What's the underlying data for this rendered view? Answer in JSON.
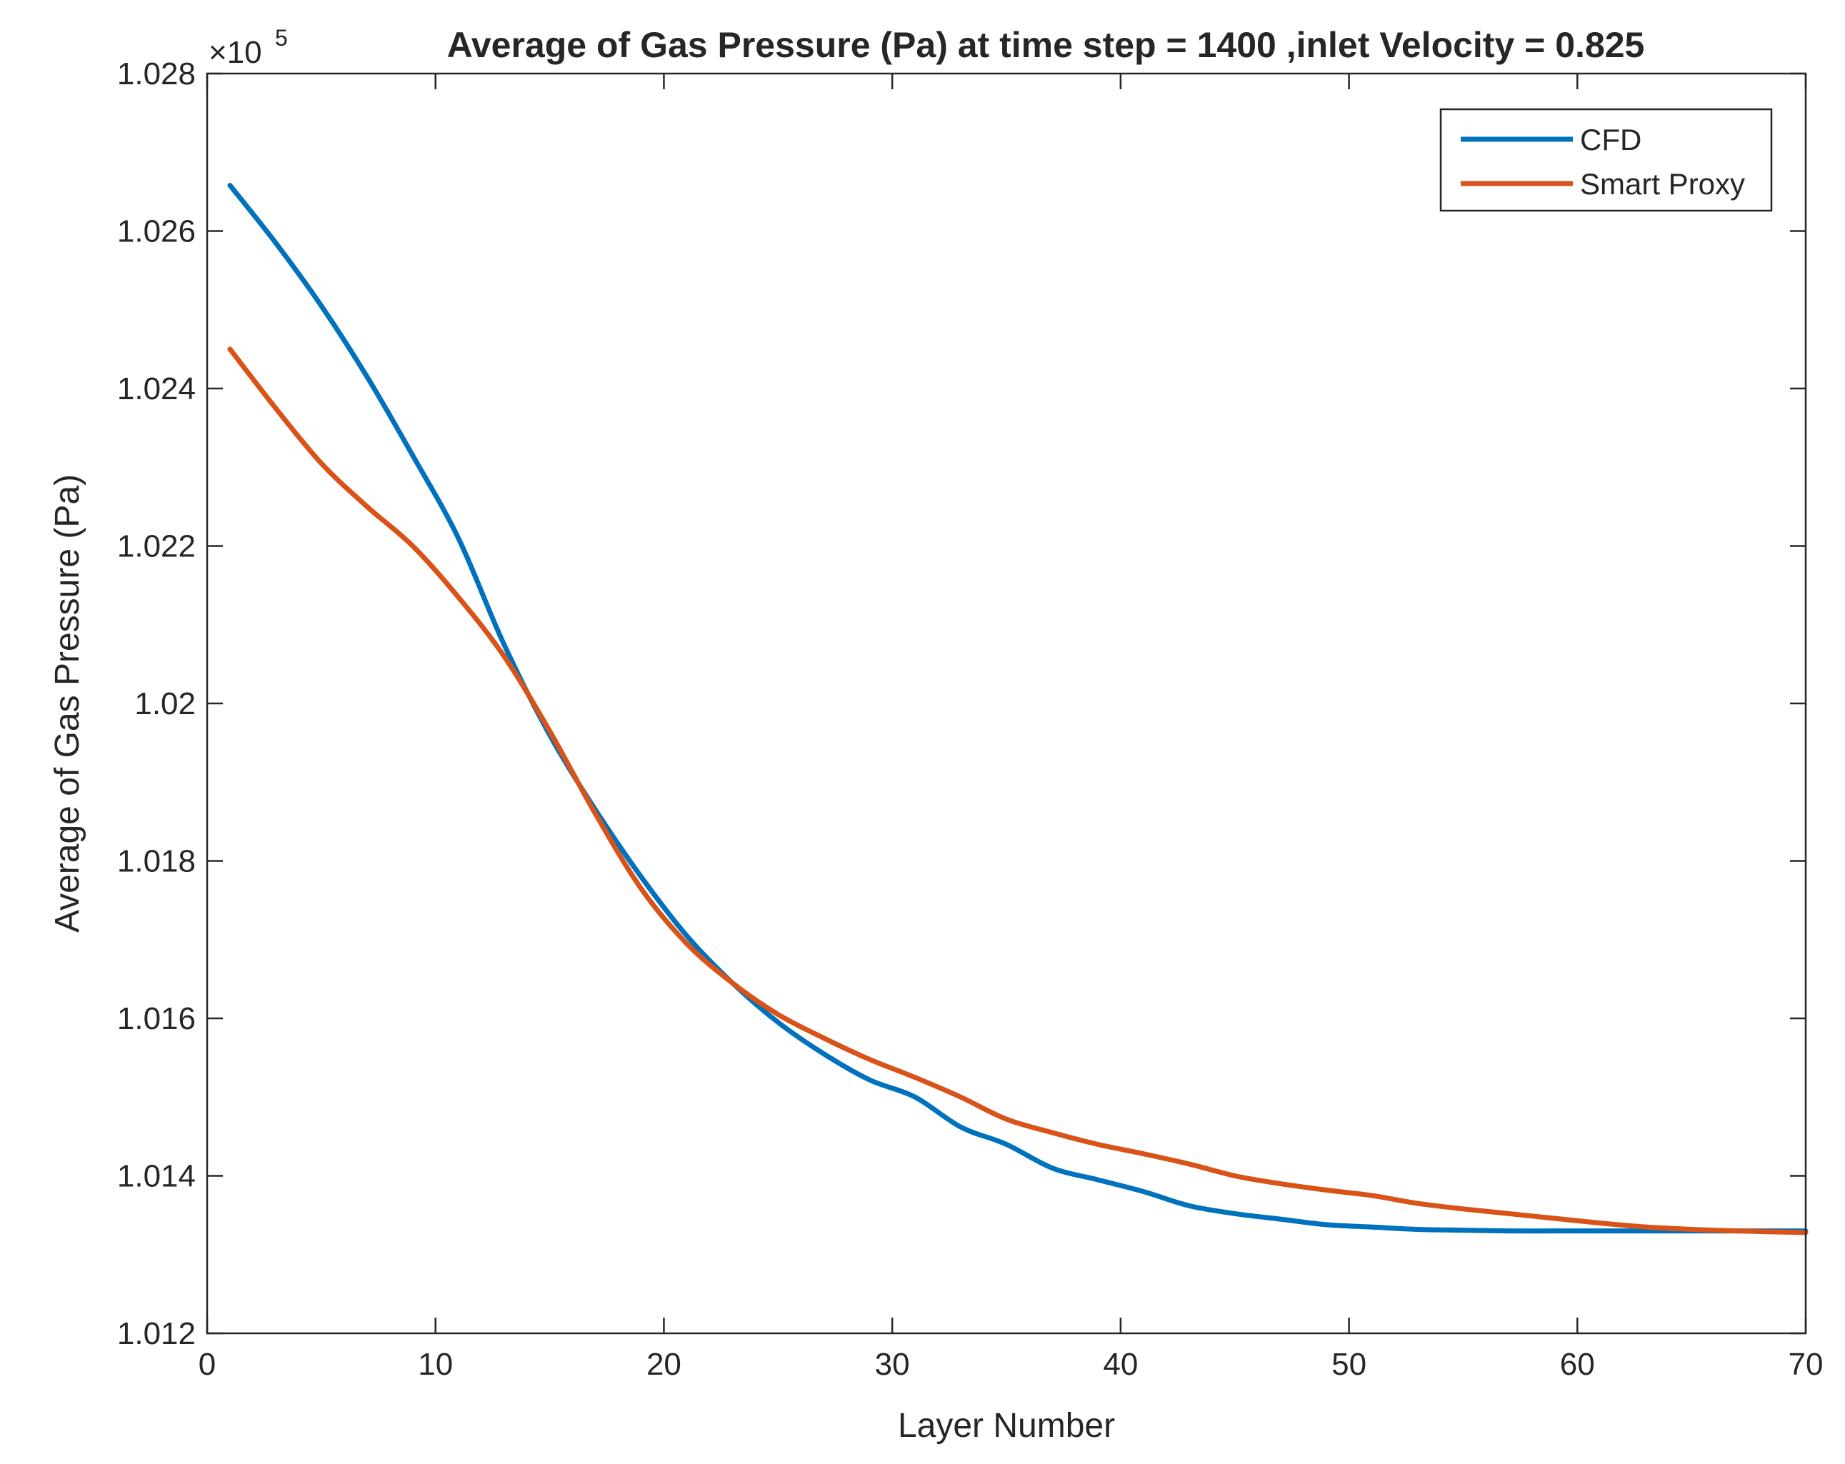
{
  "chart_data": {
    "type": "line",
    "title": "Average of Gas Pressure (Pa) at time step = 1400 ,inlet Velocity = 0.825",
    "xlabel": "Layer Number",
    "ylabel": "Average of Gas Pressure (Pa)",
    "y_exponent_label": "×10",
    "y_exponent_power": "5",
    "xlim": [
      0,
      70
    ],
    "ylim": [
      1.012,
      1.028
    ],
    "x_ticks": [
      0,
      10,
      20,
      30,
      40,
      50,
      60,
      70
    ],
    "y_ticks": [
      1.012,
      1.014,
      1.016,
      1.018,
      1.02,
      1.022,
      1.024,
      1.026,
      1.028
    ],
    "x_tick_labels": [
      "0",
      "10",
      "20",
      "30",
      "40",
      "50",
      "60",
      "70"
    ],
    "y_tick_labels": [
      "1.012",
      "1.014",
      "1.016",
      "1.018",
      "1.02",
      "1.022",
      "1.024",
      "1.026",
      "1.028"
    ],
    "legend_position": "top-right",
    "grid": false,
    "x": [
      1,
      3,
      5,
      7,
      9,
      11,
      13,
      15,
      17,
      19,
      21,
      23,
      25,
      27,
      29,
      31,
      33,
      35,
      37,
      39,
      41,
      43,
      45,
      47,
      49,
      51,
      53,
      55,
      57,
      59,
      61,
      63,
      65,
      67,
      70
    ],
    "series": [
      {
        "name": "CFD",
        "color": "#0072BD",
        "values": [
          1.02658,
          1.02585,
          1.02505,
          1.02415,
          1.02315,
          1.0221,
          1.02075,
          1.0196,
          1.01865,
          1.0178,
          1.01705,
          1.01645,
          1.01595,
          1.01555,
          1.01522,
          1.015,
          1.01462,
          1.0144,
          1.0141,
          1.01395,
          1.0138,
          1.01362,
          1.01352,
          1.01345,
          1.01338,
          1.01335,
          1.01332,
          1.01331,
          1.0133,
          1.0133,
          1.0133,
          1.0133,
          1.0133,
          1.0133,
          1.0133
        ]
      },
      {
        "name": "Smart Proxy",
        "color": "#D95319",
        "values": [
          1.0245,
          1.02375,
          1.02305,
          1.0225,
          1.022,
          1.02135,
          1.0206,
          1.01965,
          1.0186,
          1.01765,
          1.01695,
          1.01645,
          1.01605,
          1.01575,
          1.01548,
          1.01525,
          1.015,
          1.01472,
          1.01455,
          1.0144,
          1.01428,
          1.01415,
          1.014,
          1.0139,
          1.01382,
          1.01375,
          1.01365,
          1.01358,
          1.01352,
          1.01346,
          1.0134,
          1.01335,
          1.01332,
          1.0133,
          1.01328
        ]
      }
    ]
  }
}
